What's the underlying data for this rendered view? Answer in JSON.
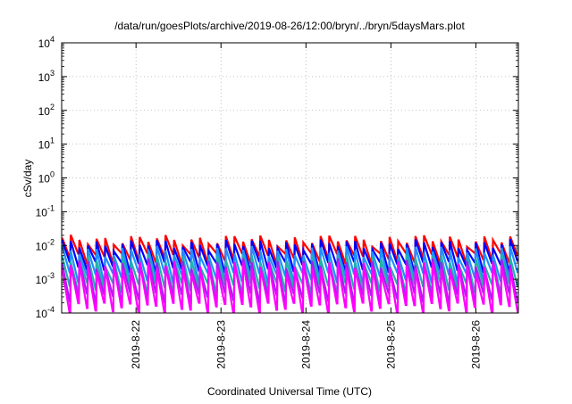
{
  "chart_data": {
    "type": "line",
    "title": "/data/run/goesPlots/archive/2019-08-26/12:00/bryn/../bryn/5daysMars.plot",
    "xlabel": "Coordinated Universal Time (UTC)",
    "ylabel": "cSv/day",
    "yscale": "log",
    "ylim": [
      0.0001,
      10000
    ],
    "y_tick_labels": [
      {
        "base": "10",
        "exp": "-4"
      },
      {
        "base": "10",
        "exp": "-3"
      },
      {
        "base": "10",
        "exp": "-2"
      },
      {
        "base": "10",
        "exp": "-1"
      },
      {
        "base": "10",
        "exp": "0"
      },
      {
        "base": "10",
        "exp": "1"
      },
      {
        "base": "10",
        "exp": "2"
      },
      {
        "base": "10",
        "exp": "3"
      },
      {
        "base": "10",
        "exp": "4"
      }
    ],
    "xlim": [
      "2019-08-21 03:00",
      "2019-08-26 12:00"
    ],
    "x_ticks": [
      "2019-8-22",
      "2019-8-23",
      "2019-8-24",
      "2019-8-25",
      "2019-8-26"
    ],
    "grid": true,
    "legend": "none",
    "cycles": 53,
    "series": [
      {
        "color": "#ff0000",
        "peak": 0.015,
        "trough": 0.0045
      },
      {
        "color": "#0000ff",
        "peak": 0.011,
        "trough": 0.0025
      },
      {
        "color": "#1e90ff",
        "peak": 0.007,
        "trough": 0.0012
      },
      {
        "color": "#20b2aa",
        "peak": 0.004,
        "trough": 0.0006
      },
      {
        "color": "#a020f0",
        "peak": 0.003,
        "trough": 0.0003
      },
      {
        "color": "#ff00ff",
        "peak": 0.0025,
        "trough": 0.00015
      }
    ]
  }
}
